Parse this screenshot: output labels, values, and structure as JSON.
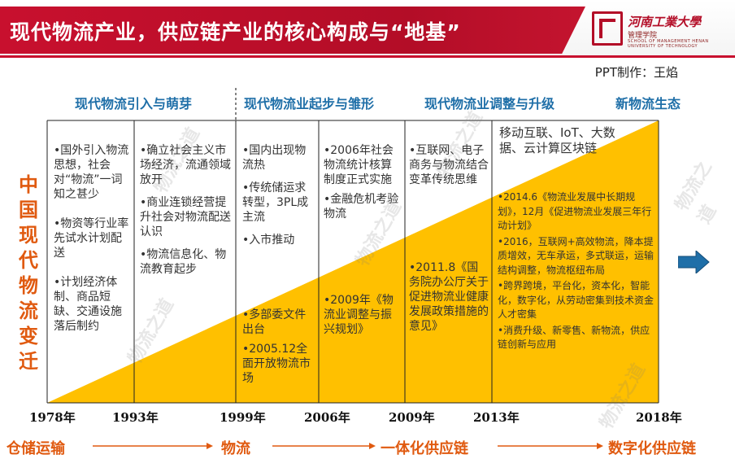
{
  "header": {
    "title": "现代物流产业，供应链产业的核心构成与“地基”",
    "logo_name": "河南工業大學",
    "logo_sub": "管理学院",
    "logo_sub_en": "SCHOOL OF MANAGEMENT HENAN UNIVERSITY OF TECHNOLOGY"
  },
  "credit": "PPT制作：王焰",
  "phases": [
    "现代物流引入与萌芽",
    "现代物流业起步与雏形",
    "现代物流业调整与升级",
    "新物流生态"
  ],
  "vertical_title": [
    "中",
    "国",
    "现",
    "代",
    "物",
    "流",
    "变",
    "迁"
  ],
  "columns": [
    {
      "items": [
        "•国外引入物流思想，社会对“物流”一词知之甚少",
        "•物资等行业率先试水计划配送",
        "•计划经济体制、商品短缺、交通设施落后制约"
      ]
    },
    {
      "items": [
        "•确立社会主义市场经济，流通领域放开",
        "•商业连锁经营提升社会对物流配送认识",
        "•物流信息化、物流教育起步"
      ]
    },
    {
      "items_top": [
        "•国内出现物流热",
        "•传统储运求转型，3PL成主流",
        "•入市推动"
      ],
      "items_bottom": [
        "•多部委文件出台",
        "•2005.12全面开放物流市场"
      ]
    },
    {
      "items_top": [
        "•2006年社会物流统计核算制度正式实施",
        "•金融危机考验物流"
      ],
      "items_bottom": [
        "•2009年《物流业调整与振兴规划》"
      ]
    },
    {
      "items_top": [
        "•互联网、电子商务与物流结合变革传统思维"
      ],
      "items_bottom": [
        "•2011.8《国务院办公厅关于促进物流业健康发展政策措施的意见》"
      ]
    },
    {
      "items_top": [
        "移动互联、IoT、大数据、云计算区块链"
      ],
      "items_bottom": [
        "•2014.6《物流业发展中长期规划》，12月《促进物流业发展三年行动计划》",
        "•2016，互联网+高效物流，降本提质增效，无车承运，多式联运，运输结构调整，物流枢纽布局",
        "•跨界跨境，平台化，资本化，智能化，数字化，从劳动密集到技术资金人才密集",
        "•消费升级、新零售、新物流，供应链创新与应用"
      ]
    }
  ],
  "years": [
    "1978年",
    "1993年",
    "1999年",
    "2006年",
    "2009年",
    "2013年",
    "2018年"
  ],
  "stages": [
    "仓储运输",
    "物流",
    "一体化供应链",
    "数字化供应链"
  ],
  "watermark": "物流之道",
  "colors": {
    "header_red": "#c8102e",
    "phase_blue": "#1f6fa8",
    "accent_orange": "#e05a10",
    "yellow_fill": "#ffc000",
    "arrow_blue": "#1f6fa8"
  },
  "icons": {
    "next_arrow": "right-arrow-icon"
  }
}
